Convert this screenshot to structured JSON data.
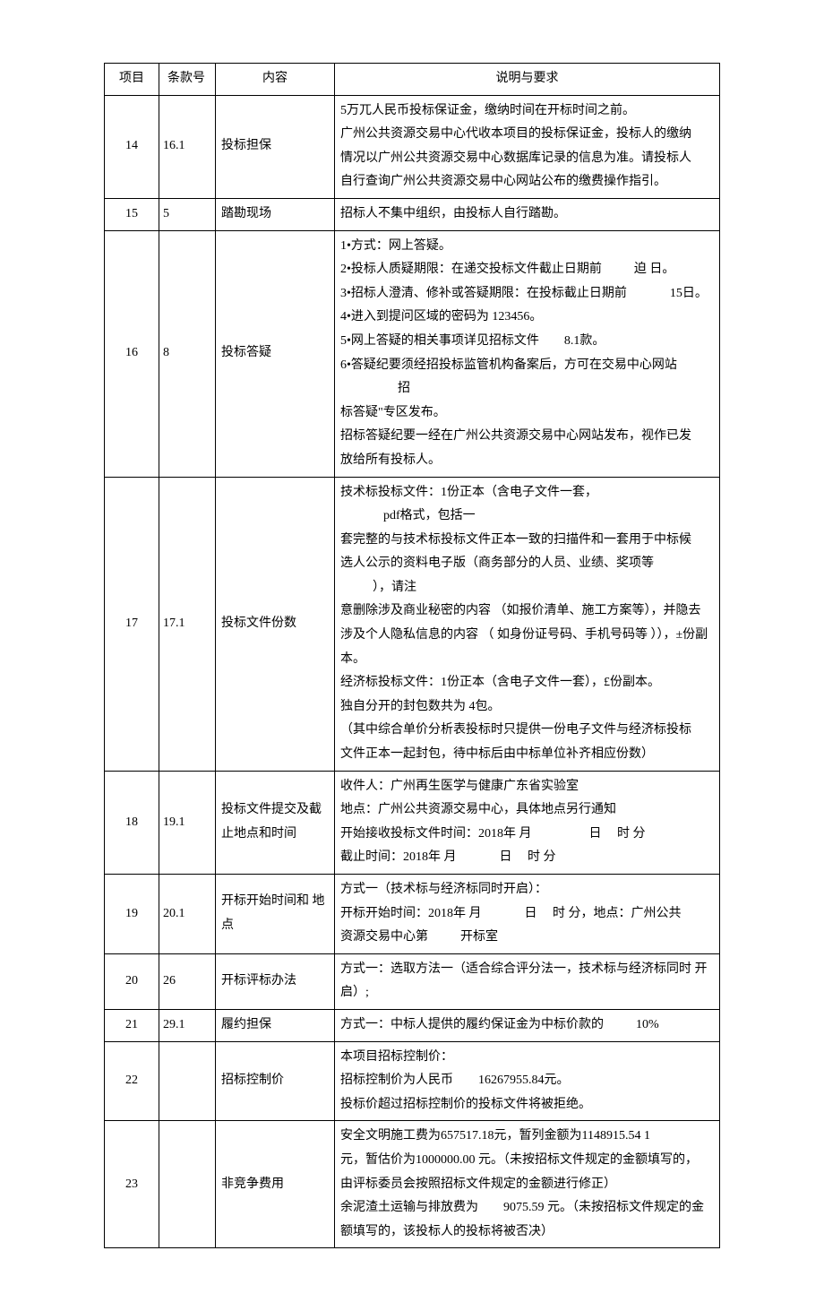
{
  "header": {
    "col1": "项目",
    "col2": "条款号",
    "col3": "内容",
    "col4": "说明与要求"
  },
  "rows": [
    {
      "proj": "14",
      "clause": "16.1",
      "content": "投标担保",
      "desc_lines": [
        {
          "parts": [
            "5万兀人民币投标保证金，缴纳时间在开标时间之前。"
          ]
        },
        {
          "parts": [
            "广州公共资源交易中心代收本项目的投标保证金，投标人的缴纳"
          ]
        },
        {
          "parts": [
            "情况以广州公共资源交易中心数据库记录的信息为准。请投标人"
          ]
        },
        {
          "parts": [
            "自行查询广州公共资源交易中心网站公布的缴费操作指引。"
          ]
        }
      ]
    },
    {
      "proj": "15",
      "clause": "5",
      "content": "踏勘现场",
      "desc_lines": [
        {
          "parts": [
            "招标人不集中组织，由投标人自行踏勘。"
          ]
        }
      ]
    },
    {
      "proj": "16",
      "clause": "8",
      "content": "投标答疑",
      "desc_lines": [
        {
          "parts": [
            "1•方式：网上答疑。"
          ]
        },
        {
          "parts": [
            "2•投标人质疑期限：在递交投标文件截止日期前",
            {
              "gap": "gap-m",
              "text": "迫 日。"
            }
          ]
        },
        {
          "parts": [
            "3•招标人澄清、修补或答疑期限：在投标截止日期前",
            {
              "gap": "gap-l",
              "text": "15日。"
            }
          ]
        },
        {
          "parts": [
            "4•进入到提问区域的密码为 123456。"
          ]
        },
        {
          "parts": [
            "5•网上答疑的相关事项详见招标文件",
            {
              "gap": "gap-s",
              "text": "8.1款。"
            }
          ]
        },
        {
          "parts": [
            "6•答疑纪要须经招投标监管机构备案后，方可在交易中心网站",
            {
              "gap": "gap-xl",
              "text": "招"
            }
          ]
        },
        {
          "parts": [
            "标答疑\"专区发布。"
          ]
        },
        {
          "parts": [
            "招标答疑纪要一经在广州公共资源交易中心网站发布，视作已发"
          ]
        },
        {
          "parts": [
            "放给所有投标人。"
          ]
        }
      ]
    },
    {
      "proj": "17",
      "clause": "17.1",
      "content": "投标文件份数",
      "desc_lines": [
        {
          "parts": [
            "技术标投标文件：1份正本（含电子文件一套，",
            {
              "gap": "gap-l",
              "text": "pdf格式，包括一"
            }
          ]
        },
        {
          "parts": [
            "套完整的与技术标投标文件正本一致的扫描件和一套用于中标候"
          ]
        },
        {
          "parts": [
            "选人公示的资料电子版（商务部分的人员、业绩、奖项等",
            {
              "gap": "gap-m",
              "text": "），请注"
            }
          ]
        },
        {
          "parts": [
            "意删除涉及商业秘密的内容 （如报价清单、施工方案等），并隐去"
          ]
        },
        {
          "parts": [
            "涉及个人隐私信息的内容 （ 如身份证号码、手机号码等 ）），±份副 本。"
          ]
        },
        {
          "parts": [
            "经济标投标文件：1份正本（含电子文件一套），£份副本。"
          ]
        },
        {
          "parts": [
            "独自分开的封包数共为 4包。"
          ]
        },
        {
          "parts": [
            "（其中综合单价分析表投标时只提供一份电子文件与经济标投标"
          ]
        },
        {
          "parts": [
            "文件正本一起封包，待中标后由中标单位补齐相应份数）"
          ]
        }
      ]
    },
    {
      "proj": "18",
      "clause": "19.1",
      "content": "投标文件提交及截止地点和时间",
      "desc_lines": [
        {
          "parts": [
            "收件人：广州再生医学与健康广东省实验室"
          ]
        },
        {
          "parts": [
            "地点：广州公共资源交易中心，具体地点另行通知"
          ]
        },
        {
          "parts": [
            "开始接收投标文件时间：2018年 月",
            {
              "gap": "gap-xl",
              "text": "日  时 分"
            }
          ]
        },
        {
          "parts": [
            "截止时间：2018年 月",
            {
              "gap": "gap-l",
              "text": "日  时 分"
            }
          ]
        }
      ]
    },
    {
      "proj": "19",
      "clause": "20.1",
      "content": "开标开始时间和 地点",
      "desc_lines": [
        {
          "parts": [
            "方式一（技术标与经济标同时开启）："
          ]
        },
        {
          "parts": [
            "开标开始时间：2018年 月",
            {
              "gap": "gap-l",
              "text": "日  时 分，地点：广州公共"
            }
          ]
        },
        {
          "parts": [
            "资源交易中心第",
            {
              "gap": "gap-m",
              "text": "开标室"
            }
          ]
        }
      ]
    },
    {
      "proj": "20",
      "clause": "26",
      "content": "开标评标办法",
      "desc_lines": [
        {
          "parts": [
            "方式一：选取方法一（适合综合评分法一，技术标与经济标同时 开启）;"
          ]
        }
      ]
    },
    {
      "proj": "21",
      "clause": "29.1",
      "content": "履约担保",
      "desc_lines": [
        {
          "parts": [
            "方式一：中标人提供的履约保证金为中标价款的",
            {
              "gap": "gap-m",
              "text": "10%"
            }
          ]
        }
      ]
    },
    {
      "proj": "22",
      "clause": "",
      "content": "招标控制价",
      "desc_lines": [
        {
          "parts": [
            "本项目招标控制价："
          ]
        },
        {
          "parts": [
            "招标控制价为人民币",
            {
              "gap": "gap-s",
              "text": "16267955.84元。"
            }
          ]
        },
        {
          "parts": [
            "投标价超过招标控制价的投标文件将被拒绝。"
          ]
        }
      ]
    },
    {
      "proj": "23",
      "clause": "",
      "content": "非竞争费用",
      "desc_lines": [
        {
          "parts": [
            "安全文明施工费为657517.18元，暂列金额为1148915.54 1"
          ]
        },
        {
          "parts": [
            "元，暂估价为1000000.00 元。（未按招标文件规定的金额填写的，"
          ]
        },
        {
          "parts": [
            "由评标委员会按照招标文件规定的金额进行修正）"
          ]
        },
        {
          "parts": [
            "余泥渣土运输与排放费为",
            {
              "gap": "gap-s",
              "text": "9075.59 元。（未按招标文件规定的金"
            }
          ]
        },
        {
          "parts": [
            "额填写的，该投标人的投标将被否决）"
          ]
        }
      ]
    }
  ]
}
